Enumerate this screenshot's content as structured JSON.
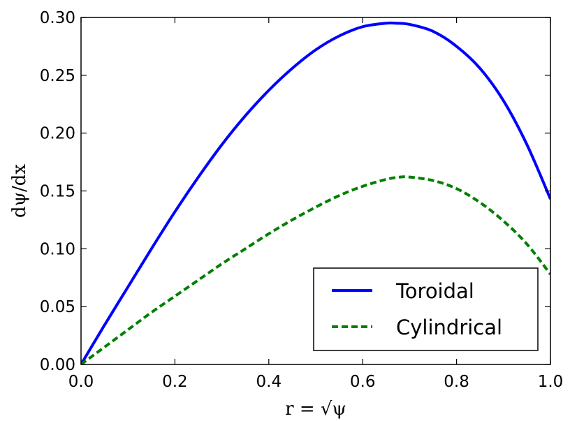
{
  "chart_data": {
    "type": "line",
    "title": "",
    "xlabel": "r = √ψ",
    "ylabel": "dψ/dx",
    "xlim": [
      0.0,
      1.0
    ],
    "ylim": [
      0.0,
      0.3
    ],
    "xticks": [
      "0.0",
      "0.2",
      "0.4",
      "0.6",
      "0.8",
      "1.0"
    ],
    "yticks": [
      "0.00",
      "0.05",
      "0.10",
      "0.15",
      "0.20",
      "0.25",
      "0.30"
    ],
    "grid": false,
    "legend_position": "lower-right",
    "series": [
      {
        "name": "Toroidal",
        "style": "solid",
        "color": "#0000ff",
        "x": [
          0.0,
          0.05,
          0.1,
          0.15,
          0.2,
          0.25,
          0.3,
          0.35,
          0.4,
          0.45,
          0.5,
          0.55,
          0.6,
          0.65,
          0.67,
          0.7,
          0.75,
          0.8,
          0.85,
          0.9,
          0.95,
          1.0
        ],
        "y": [
          0.0,
          0.034,
          0.067,
          0.1,
          0.132,
          0.162,
          0.19,
          0.215,
          0.237,
          0.256,
          0.272,
          0.284,
          0.292,
          0.295,
          0.295,
          0.294,
          0.288,
          0.275,
          0.256,
          0.228,
          0.19,
          0.143
        ]
      },
      {
        "name": "Cylindrical",
        "style": "dashed",
        "color": "#008000",
        "x": [
          0.0,
          0.05,
          0.1,
          0.15,
          0.2,
          0.25,
          0.3,
          0.35,
          0.4,
          0.45,
          0.5,
          0.55,
          0.6,
          0.65,
          0.68,
          0.7,
          0.75,
          0.8,
          0.85,
          0.9,
          0.95,
          1.0
        ],
        "y": [
          0.0,
          0.015,
          0.03,
          0.045,
          0.059,
          0.073,
          0.087,
          0.1,
          0.113,
          0.125,
          0.136,
          0.146,
          0.154,
          0.16,
          0.162,
          0.162,
          0.159,
          0.152,
          0.14,
          0.124,
          0.104,
          0.078
        ]
      }
    ]
  }
}
